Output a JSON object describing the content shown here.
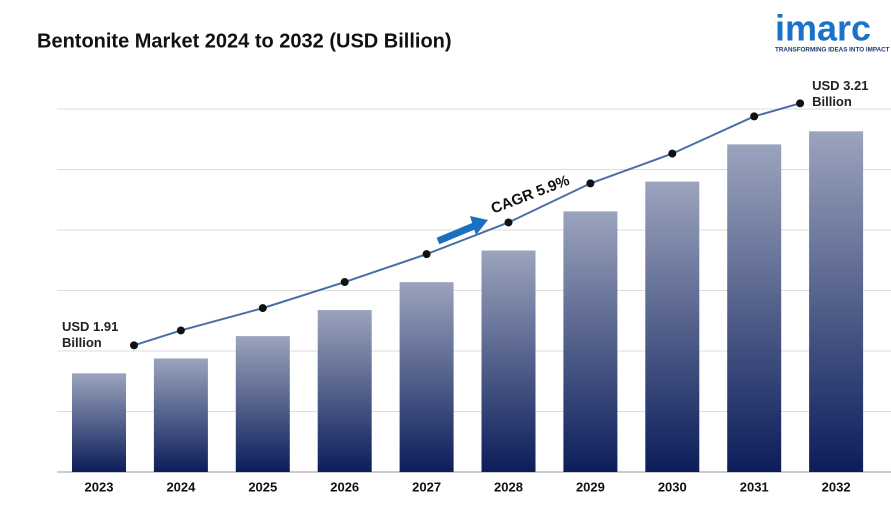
{
  "chart_data": {
    "type": "bar",
    "title": "Bentonite Market 2024 to 2032 (USD Billion)",
    "categories": [
      "2023",
      "2024",
      "2025",
      "2026",
      "2027",
      "2028",
      "2029",
      "2030",
      "2031",
      "2032"
    ],
    "values": [
      1.91,
      1.99,
      2.11,
      2.25,
      2.4,
      2.57,
      2.78,
      2.94,
      3.14,
      3.21
    ],
    "value_labels": [
      "USD 1.91 Billion",
      null,
      null,
      null,
      null,
      null,
      null,
      null,
      null,
      "USD 3.21 Billion"
    ],
    "annotation": "CAGR 5.9%",
    "ylim": [
      1.38,
      3.33
    ],
    "grid": true,
    "color_top": "#9ba4bd",
    "color_bottom": "#0c1d5a",
    "line_color": "#4a6fa5",
    "logo": {
      "name": "imarc",
      "tagline": "TRANSFORMING IDEAS INTO IMPACT"
    }
  }
}
